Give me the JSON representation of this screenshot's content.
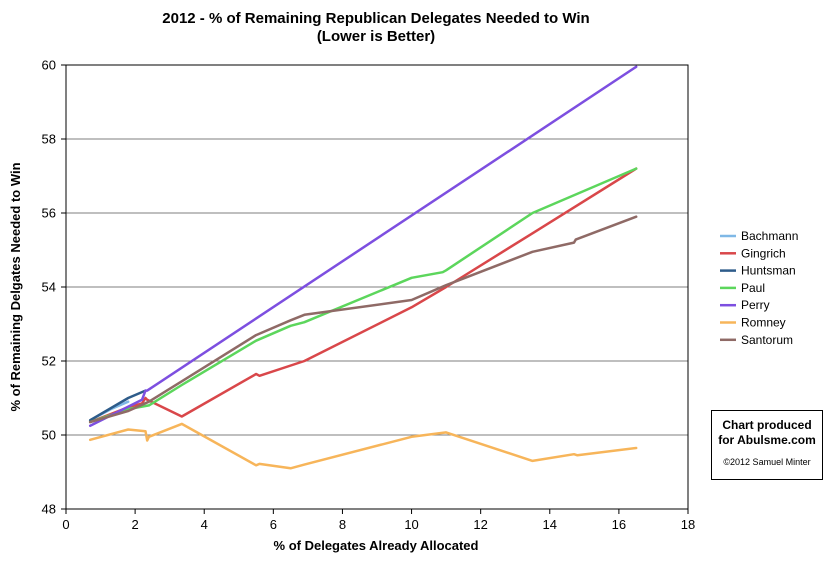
{
  "chart_data": {
    "type": "line",
    "title": "2012 - % of Remaining Republican Delegates Needed to Win",
    "subtitle": "(Lower is Better)",
    "xlabel": "% of Delegates Already Allocated",
    "ylabel": "% of Remaining Delgates Needed to Win",
    "xlim": [
      0,
      18
    ],
    "ylim": [
      48,
      60
    ],
    "xticks": [
      0,
      2,
      4,
      6,
      8,
      10,
      12,
      14,
      16,
      18
    ],
    "yticks": [
      48,
      50,
      52,
      54,
      56,
      58,
      60
    ],
    "grid": "horizontal",
    "legend_position": "right",
    "series": [
      {
        "name": "Bachmann",
        "color": "#7fb8e6",
        "x": [
          0.7,
          1.3,
          1.8
        ],
        "y": [
          50.4,
          50.7,
          50.9
        ]
      },
      {
        "name": "Gingrich",
        "color": "#d9474a",
        "x": [
          0.7,
          1.8,
          2.2,
          2.3,
          2.35,
          3.35,
          5.5,
          5.6,
          6.9,
          10.0,
          11.0,
          13.5,
          16.5
        ],
        "y": [
          50.35,
          50.75,
          50.85,
          51.0,
          50.95,
          50.5,
          51.65,
          51.6,
          52.0,
          53.45,
          54.0,
          55.45,
          57.2
        ]
      },
      {
        "name": "Huntsman",
        "color": "#2e5c8a",
        "x": [
          0.7,
          1.8,
          2.3
        ],
        "y": [
          50.4,
          51.0,
          51.2
        ]
      },
      {
        "name": "Paul",
        "color": "#5cd65c",
        "x": [
          0.7,
          1.8,
          2.4,
          3.35,
          5.5,
          6.5,
          6.9,
          10.0,
          10.9,
          11.0,
          13.5,
          16.5
        ],
        "y": [
          50.35,
          50.7,
          50.8,
          51.35,
          52.55,
          52.95,
          53.05,
          54.25,
          54.4,
          54.45,
          56.0,
          57.2
        ]
      },
      {
        "name": "Perry",
        "color": "#7d4fe0",
        "x": [
          0.7,
          2.2,
          2.3,
          2.35,
          16.5
        ],
        "y": [
          50.25,
          50.95,
          51.2,
          51.2,
          59.95
        ]
      },
      {
        "name": "Romney",
        "color": "#f7b55a",
        "x": [
          0.7,
          1.8,
          2.3,
          2.35,
          2.4,
          3.35,
          5.5,
          5.6,
          6.5,
          6.9,
          10.0,
          11.0,
          13.5,
          14.7,
          14.8,
          16.5
        ],
        "y": [
          49.87,
          50.15,
          50.1,
          49.85,
          49.95,
          50.3,
          49.18,
          49.22,
          49.1,
          49.2,
          49.95,
          50.07,
          49.3,
          49.48,
          49.45,
          49.65
        ]
      },
      {
        "name": "Santorum",
        "color": "#8f6a66",
        "x": [
          0.7,
          1.8,
          2.4,
          3.35,
          5.5,
          6.5,
          6.9,
          10.0,
          11.0,
          13.5,
          14.7,
          14.75,
          16.5
        ],
        "y": [
          50.35,
          50.65,
          50.9,
          51.45,
          52.7,
          53.1,
          53.25,
          53.65,
          54.05,
          54.95,
          55.2,
          55.28,
          55.9
        ]
      }
    ]
  },
  "credit": {
    "line1": "Chart produced",
    "line2": "for Abulsme.com",
    "copyright": "©2012 Samuel Minter"
  }
}
